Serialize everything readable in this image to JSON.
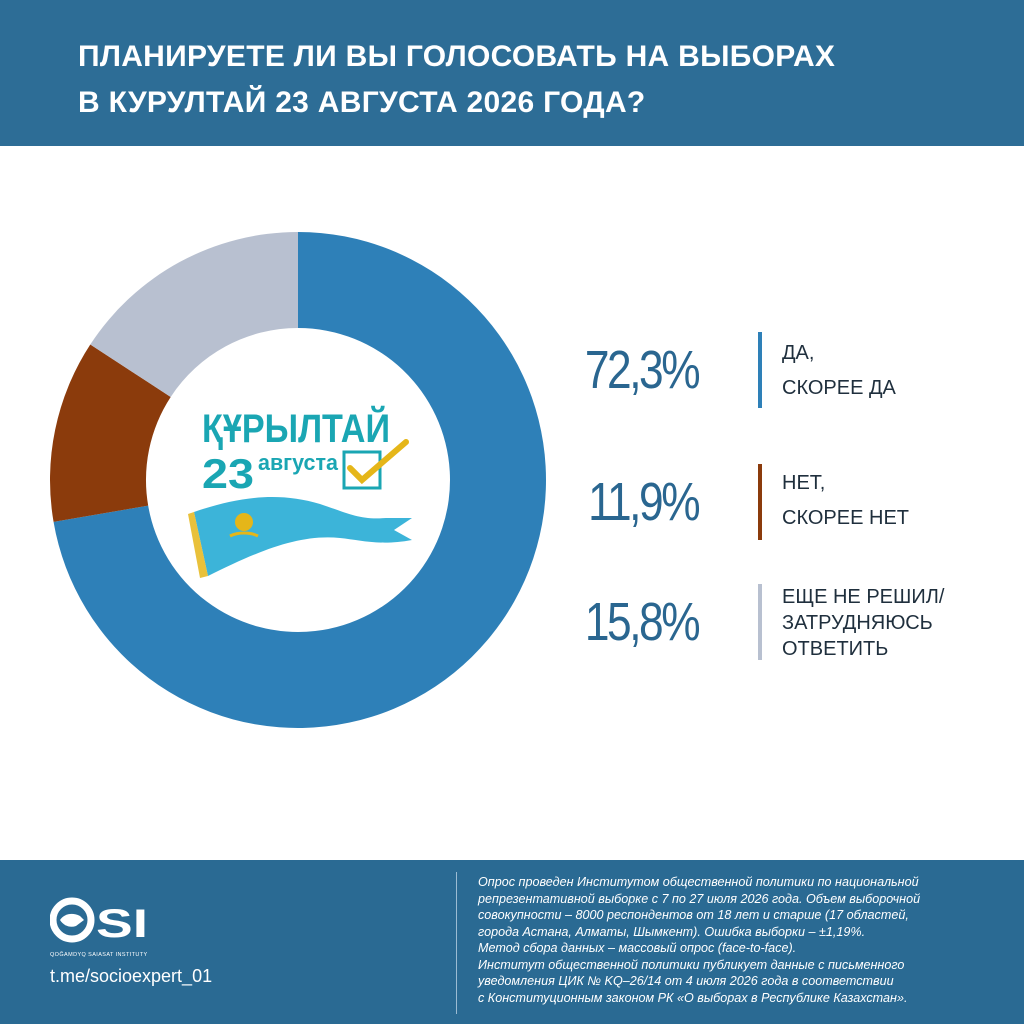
{
  "header": {
    "title_line1": "ПЛАНИРУЕТЕ ЛИ ВЫ ГОЛОСОВАТЬ НА ВЫБОРАХ",
    "title_line2": "В КУРУЛТАЙ 23 АВГУСТА 2026 ГОДА?"
  },
  "center_logo": {
    "word": "ҚҰРЫЛТАЙ",
    "date_num": "23",
    "date_word": "августа"
  },
  "chart_data": {
    "type": "pie",
    "title": "ПЛАНИРУЕТЕ ЛИ ВЫ ГОЛОСОВАТЬ НА ВЫБОРАХ В КУРУЛТАЙ 23 АВГУСТА 2026 ГОДА?",
    "donut": true,
    "slices": [
      {
        "label_line1": "ДА,",
        "label_line2": "СКОРЕЕ ДА",
        "label_line3": "",
        "value": 72.3,
        "value_text": "72,3%",
        "color": "#2e80b8"
      },
      {
        "label_line1": "НЕТ,",
        "label_line2": "СКОРЕЕ НЕТ",
        "label_line3": "",
        "value": 11.9,
        "value_text": "11,9%",
        "color": "#8b3b0c"
      },
      {
        "label_line1": "ЕЩЕ НЕ РЕШИЛ/",
        "label_line2": "ЗАТРУДНЯЮСЬ",
        "label_line3": "ОТВЕТИТЬ",
        "value": 15.8,
        "value_text": "15,8%",
        "color": "#b8c0d0"
      }
    ],
    "legend_position": "right"
  },
  "footer": {
    "logo_text": "QSI",
    "logo_subtext": "QOĞAMDYQ SAIASAT INSTITUTY",
    "link": "t.me/socioexpert_01",
    "note_lines": [
      "Опрос проведен Институтом общественной политики по национальной",
      "репрезентативной выборке с 7 по 27 июля 2026 года. Объем выборочной",
      "совокупности – 8000 респондентов от 18 лет и старше (17 областей,",
      "города Астана, Алматы, Шымкент). Ошибка выборки – ±1,19%.",
      "Метод сбора данных – массовый опрос (face-to-face).",
      "Институт общественной политики публикует данные с письменного",
      "уведомления ЦИК № KQ–26/14 от 4 июля 2026 года в соответствии",
      "с Конституционным законом РК «О выборах в Республике Казахстан»."
    ]
  },
  "colors": {
    "header_bg": "#2d6d96",
    "footer_bg": "#2a6a93",
    "percent_text": "#2a6690",
    "logo_teal": "#1aa6b3",
    "flag_blue": "#3cb4d9",
    "flag_gold": "#e5b619"
  }
}
